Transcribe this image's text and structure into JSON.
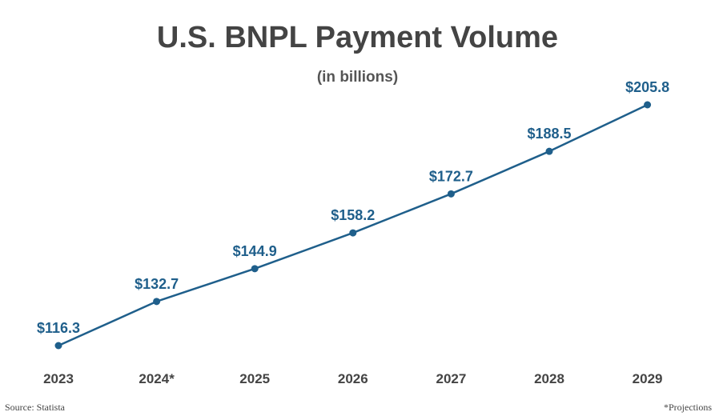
{
  "title": "U.S. BNPL Payment Volume",
  "subtitle": "(in billions)",
  "source": "Source: Statista",
  "footnote": "*Projections",
  "colors": {
    "line": "#1f5f8b",
    "label": "#1f5f8b",
    "tick": "#444444"
  },
  "chart_data": {
    "type": "line",
    "title": "U.S. BNPL Payment Volume",
    "subtitle": "(in billions)",
    "xlabel": "",
    "ylabel": "",
    "grid": false,
    "legend": "none",
    "categories": [
      "2023",
      "2024*",
      "2025",
      "2026",
      "2027",
      "2028",
      "2029"
    ],
    "values": [
      116.3,
      132.7,
      144.9,
      158.2,
      172.7,
      188.5,
      205.8
    ],
    "data_labels": [
      "$116.3",
      "$132.7",
      "$144.9",
      "$158.2",
      "$172.7",
      "$188.5",
      "$205.8"
    ],
    "ylim": [
      110,
      210
    ]
  }
}
